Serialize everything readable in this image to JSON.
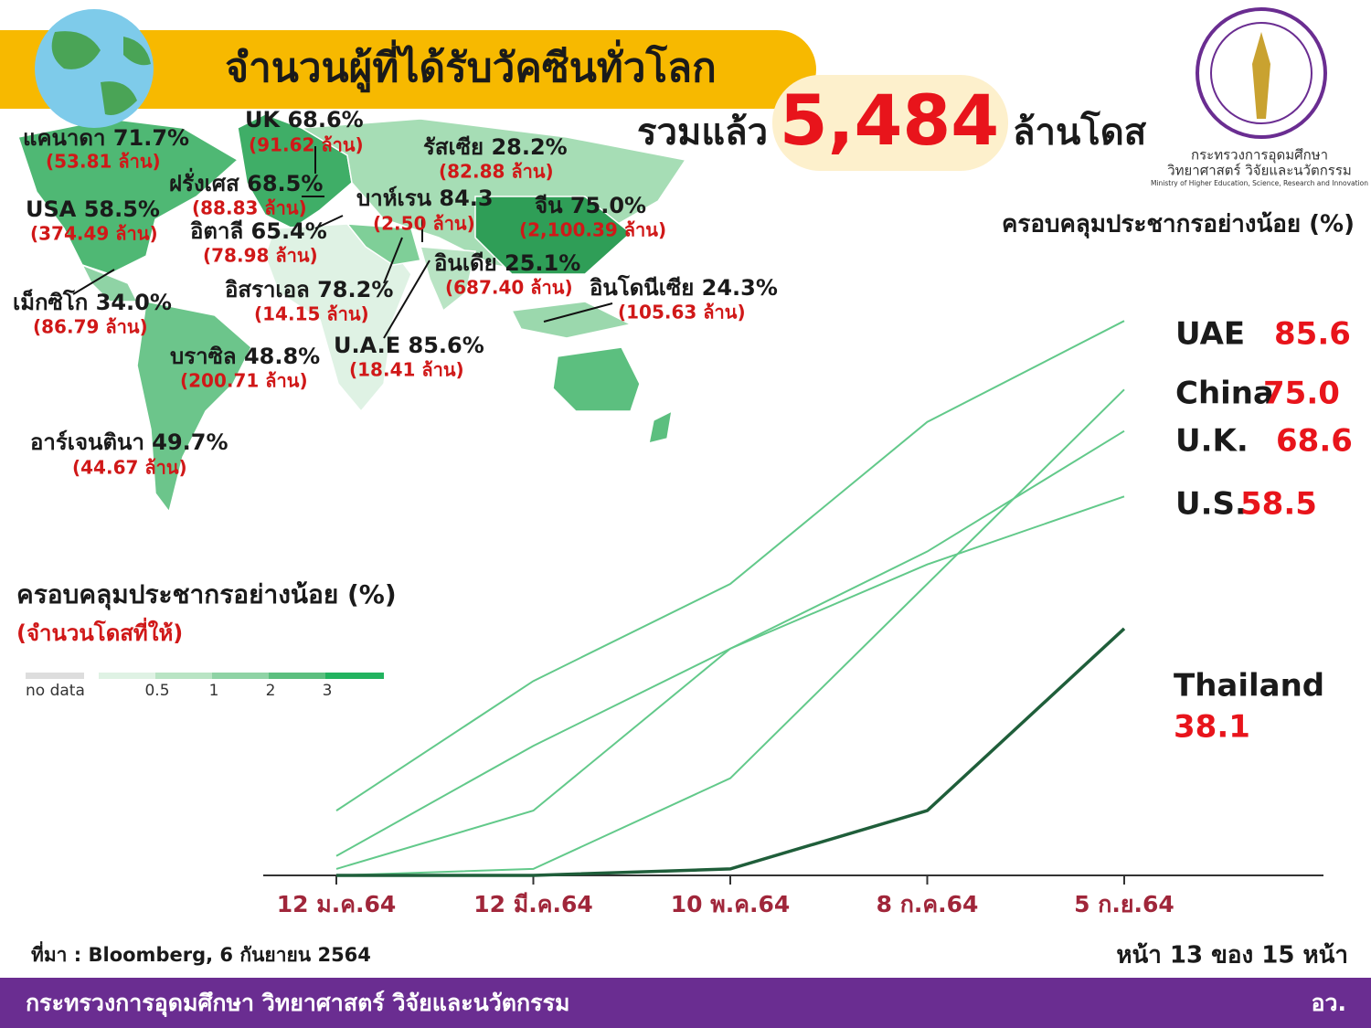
{
  "header": {
    "title": "จำนวนผู้ที่ได้รับวัคซีนทั่วโลก",
    "total_prefix": "รวมแล้ว",
    "total": "5,484",
    "total_unit": "ล้านโดส"
  },
  "logo": {
    "line1": "กระทรวงการอุดมศึกษา",
    "line2": "วิทยาศาสตร์ วิจัยและนวัตกรรม",
    "line3": "Ministry of Higher Education, Science, Research and Innovation"
  },
  "map": {
    "labels": [
      {
        "text": "แคนาดา 71.7%",
        "doses": "(53.81 ล้าน)"
      },
      {
        "text": "UK 68.6%",
        "doses": "(91.62 ล้าน)"
      },
      {
        "text": "รัสเซีย 28.2%",
        "doses": "(82.88 ล้าน)"
      },
      {
        "text": "ฝรั่งเศส 68.5%",
        "doses": "(88.83 ล้าน)"
      },
      {
        "text": "USA 58.5%",
        "doses": "(374.49 ล้าน)"
      },
      {
        "text": "อิตาลี 65.4%",
        "doses": "(78.98 ล้าน)"
      },
      {
        "text": "บาห์เรน 84.3",
        "doses": "(2.50 ล้าน)"
      },
      {
        "text": "จีน 75.0%",
        "doses": "(2,100.39 ล้าน)"
      },
      {
        "text": "อินเดีย 25.1%",
        "doses": "(687.40 ล้าน)"
      },
      {
        "text": "อิสราเอล 78.2%",
        "doses": "(14.15 ล้าน)"
      },
      {
        "text": "อินโดนีเซีย 24.3%",
        "doses": "(105.63 ล้าน)"
      },
      {
        "text": "เม็กซิโก 34.0%",
        "doses": "(86.79 ล้าน)"
      },
      {
        "text": "U.A.E 85.6%",
        "doses": "(18.41 ล้าน)"
      },
      {
        "text": "บราซิล 48.8%",
        "doses": "(200.71 ล้าน)"
      },
      {
        "text": "อาร์เจนตินา 49.7%",
        "doses": "(44.67 ล้าน)"
      }
    ],
    "legend_title": "ครอบคลุมประชากรอย่างน้อย (%)",
    "legend_subtitle": "(จำนวนโดสที่ให้)",
    "legend_scale": [
      "no data",
      "0.5",
      "1",
      "2",
      "3"
    ]
  },
  "chart_data": {
    "type": "line",
    "title": "ครอบคลุมประชากรอย่างน้อย (%)",
    "categories": [
      "12 ม.ค.64",
      "12 มี.ค.64",
      "10 พ.ค.64",
      "8 ก.ค.64",
      "5 ก.ย.64"
    ],
    "ylim": [
      0,
      90
    ],
    "series": [
      {
        "name": "UAE",
        "color": "#62c98a",
        "values": [
          10,
          30,
          45,
          70,
          85.6
        ],
        "value_labels": [
          null,
          null,
          null,
          null,
          "85.6"
        ]
      },
      {
        "name": "China",
        "color": "#62c98a",
        "values": [
          0,
          1,
          15,
          45,
          75.0
        ],
        "value_labels": [
          null,
          null,
          null,
          null,
          "75.0"
        ]
      },
      {
        "name": "U.K.",
        "color": "#62c98a",
        "values": [
          3,
          20,
          35,
          50,
          68.6
        ],
        "value_labels": [
          null,
          null,
          null,
          null,
          "68.6"
        ]
      },
      {
        "name": "U.S.",
        "color": "#62c98a",
        "values": [
          1,
          10,
          35,
          48,
          58.5
        ],
        "value_labels": [
          null,
          null,
          null,
          null,
          "58.5"
        ]
      },
      {
        "name": "Thailand",
        "color": "#1f5e3a",
        "values": [
          0,
          0,
          1,
          10,
          38.1
        ],
        "value_labels": [
          null,
          null,
          null,
          null,
          "38.1"
        ]
      }
    ]
  },
  "footer": {
    "source": "ที่มา : Bloomberg, 6 กันยายน 2564",
    "page": "หน้า 13 ของ 15 หน้า",
    "ministry": "กระทรวงการอุดมศึกษา วิทยาศาสตร์ วิจัยและนวัตกรรม",
    "abbr": "อว."
  }
}
